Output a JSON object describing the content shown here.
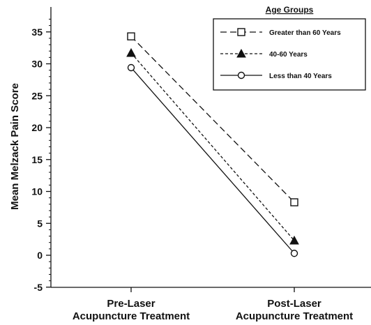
{
  "chart_data": {
    "type": "line",
    "title": "",
    "ylabel": "Mean Melzack Pain Score",
    "xlabel": "",
    "ylim": [
      -5,
      37
    ],
    "yticks": [
      -5,
      0,
      5,
      10,
      15,
      20,
      25,
      30,
      35
    ],
    "categories": [
      [
        "Pre-Laser",
        "Acupuncture Treatment"
      ],
      [
        "Post-Laser",
        "Acupuncture Treatment"
      ]
    ],
    "legend": {
      "title": "Age Groups",
      "placement": "top-right"
    },
    "series": [
      {
        "name": "Greater than 60 Years",
        "values": [
          34.3,
          8.3
        ],
        "marker": "square-open",
        "line": "long-dash"
      },
      {
        "name": "40-60 Years",
        "values": [
          31.7,
          2.3
        ],
        "marker": "triangle-filled",
        "line": "short-dash"
      },
      {
        "name": "Less than 40 Years",
        "values": [
          29.4,
          0.3
        ],
        "marker": "circle-open",
        "line": "solid"
      }
    ]
  }
}
